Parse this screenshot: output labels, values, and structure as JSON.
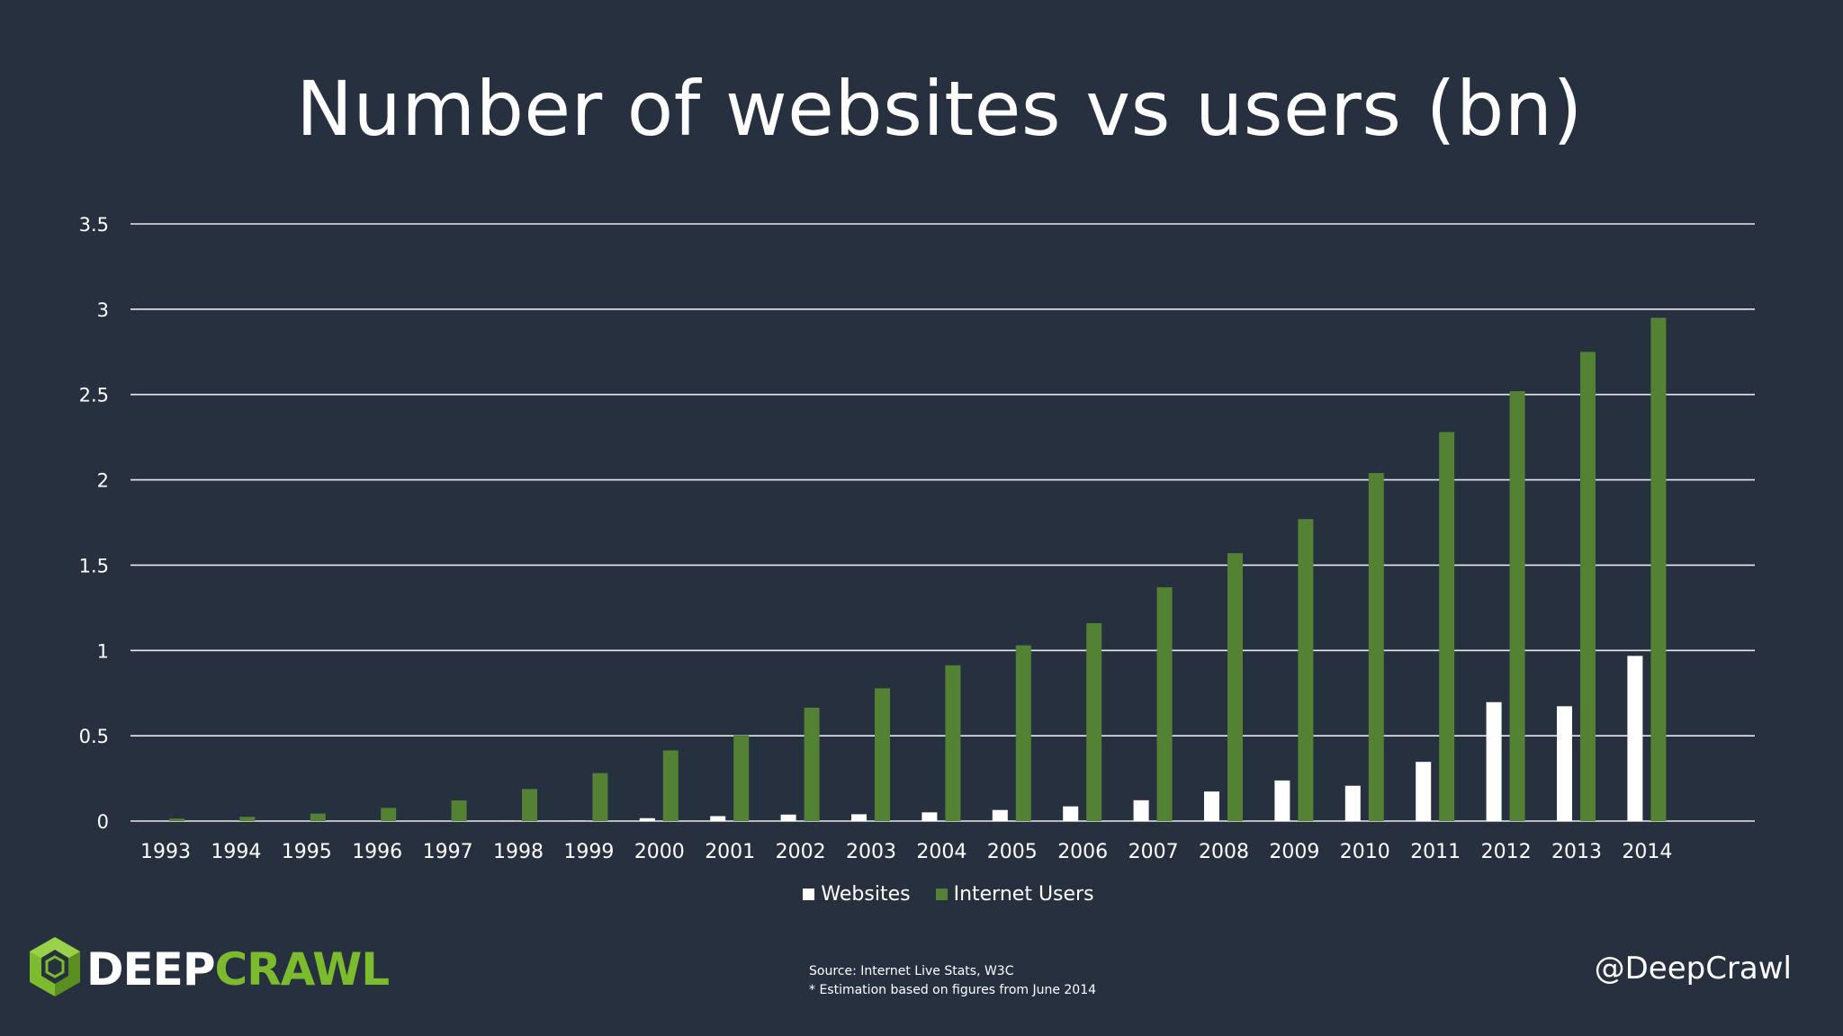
{
  "slide": {
    "title": "Number of websites vs users (bn)",
    "source_line": "Source: Internet Live Stats, W3C",
    "note_line": "* Estimation based on figures from June 2014",
    "handle": "@DeepCrawl"
  },
  "logo": {
    "icon": "hexagon-cube-icon",
    "text_part1": "DEEP",
    "text_part2": "CRAWL",
    "colors": {
      "part1": "#ffffff",
      "part2": "#7dbb2e"
    }
  },
  "colors": {
    "background": "#26303f",
    "gridline": "#ffffff",
    "axis_text": "#ffffff"
  },
  "chart_data": {
    "type": "bar",
    "title": "Number of websites vs users (bn)",
    "xlabel": "",
    "ylabel": "",
    "ylim": [
      0,
      3.5
    ],
    "yticks": [
      "0",
      "0.5",
      "1",
      "1.5",
      "2",
      "2.5",
      "3",
      "3.5"
    ],
    "grid": true,
    "legend_position": "bottom",
    "categories": [
      "1993",
      "1994",
      "1995",
      "1996",
      "1997",
      "1998",
      "1999",
      "2000",
      "2001",
      "2002",
      "2003",
      "2004",
      "2005",
      "2006",
      "2007",
      "2008",
      "2009",
      "2010",
      "2011",
      "2012",
      "2013",
      "2014"
    ],
    "series": [
      {
        "name": "Websites",
        "color": "#ffffff",
        "values": [
          0.0,
          0.0,
          0.0,
          0.0,
          0.001,
          0.002,
          0.003,
          0.017,
          0.029,
          0.038,
          0.04,
          0.051,
          0.065,
          0.086,
          0.122,
          0.173,
          0.238,
          0.207,
          0.347,
          0.697,
          0.673,
          0.968
        ]
      },
      {
        "name": "Internet Users",
        "color": "#548235",
        "values": [
          0.014,
          0.025,
          0.044,
          0.077,
          0.121,
          0.188,
          0.281,
          0.414,
          0.502,
          0.665,
          0.778,
          0.913,
          1.03,
          1.16,
          1.37,
          1.57,
          1.77,
          2.04,
          2.28,
          2.52,
          2.75,
          2.95
        ]
      }
    ]
  }
}
